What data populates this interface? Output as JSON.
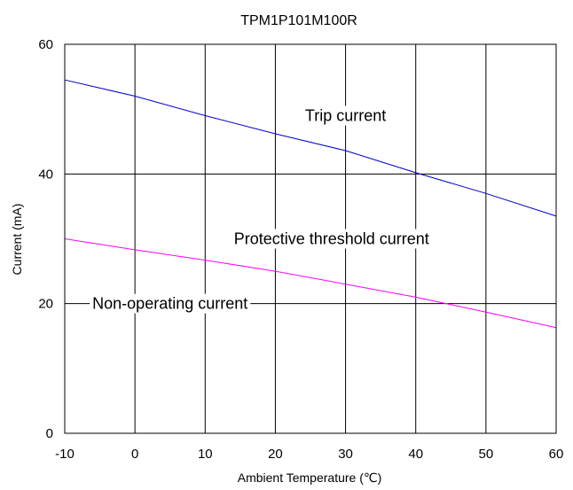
{
  "chart_data": {
    "type": "line",
    "title": "TPM1P101M100R",
    "xlabel": "Ambient Temperature (℃)",
    "ylabel": "Current (mA)",
    "xlim": [
      -10,
      60
    ],
    "ylim": [
      0,
      60
    ],
    "xticks": [
      "-10",
      "0",
      "10",
      "20",
      "30",
      "40",
      "50",
      "60"
    ],
    "yticks": [
      "0",
      "20",
      "40",
      "60"
    ],
    "xtick_values": [
      -10,
      0,
      10,
      20,
      30,
      40,
      50,
      60
    ],
    "ytick_values": [
      0,
      20,
      40,
      60
    ],
    "grid": true,
    "series": [
      {
        "name": "Trip current",
        "color": "#0000cc",
        "x": [
          -10,
          0,
          10,
          20,
          30,
          40,
          50,
          60
        ],
        "y": [
          54.5,
          52.0,
          49.0,
          46.2,
          43.6,
          40.2,
          37.0,
          33.5
        ]
      },
      {
        "name": "Protective threshold current",
        "color": "#ff00ff",
        "x": [
          -10,
          0,
          10,
          20,
          30,
          40,
          50,
          60
        ],
        "y": [
          30.0,
          28.3,
          26.7,
          25.0,
          23.0,
          21.0,
          18.7,
          16.3
        ]
      }
    ],
    "annotations": [
      {
        "text": "Trip current",
        "x": 30,
        "y": 49
      },
      {
        "text": "Protective threshold current",
        "x": 28,
        "y": 30
      },
      {
        "text": "Non-operating current",
        "x": 5,
        "y": 20
      }
    ]
  }
}
